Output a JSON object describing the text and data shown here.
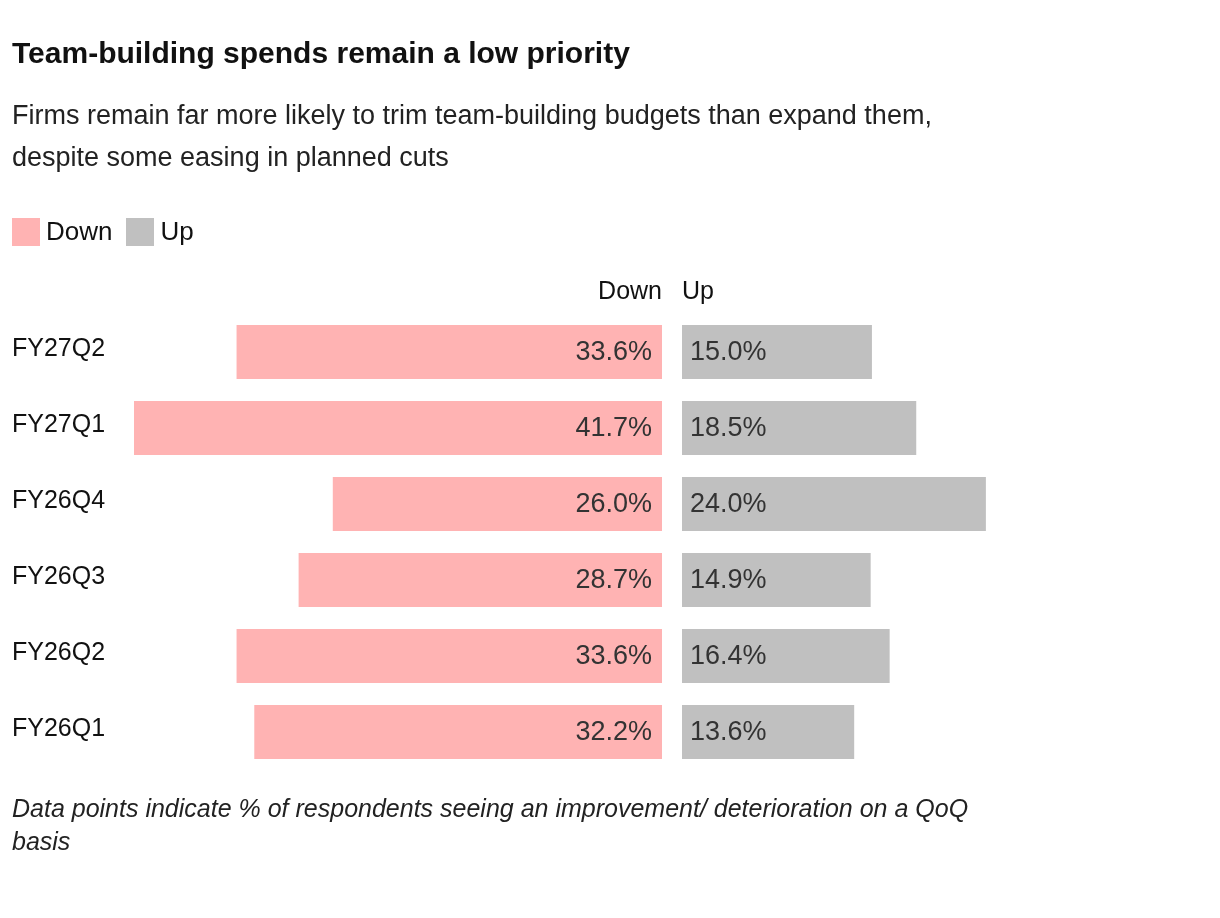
{
  "chart_data": [
    {
      "type": "bar",
      "orientation": "horizontal",
      "title": "Team-building spends remain a low priority",
      "subtitle": "Firms remain far more likely to trim team-building budgets than expand them, despite some easing in planned cuts",
      "categories": [
        "FY27Q2",
        "FY27Q1",
        "FY26Q4",
        "FY26Q3",
        "FY26Q2",
        "FY26Q1"
      ],
      "series": [
        {
          "name": "Down",
          "color": "#ffb3b3",
          "values": [
            33.6,
            41.7,
            26.0,
            28.7,
            33.6,
            32.2
          ],
          "value_labels": [
            "33.6%",
            "41.7%",
            "26.0%",
            "28.7%",
            "33.6%",
            "32.2%"
          ]
        }
      ],
      "legend": "top left",
      "annotations": [
        "Data points indicate % of respondents seeing an improvement/ deterioration on a QoQ basis"
      ]
    },
    {
      "type": "bar",
      "orientation": "horizontal",
      "tick_labels": false,
      "categories": [
        null,
        null,
        null,
        null,
        null,
        null
      ],
      "series": [
        {
          "name": "Up",
          "color": "#c0c0c0",
          "values": [
            15.0,
            18.5,
            24.0,
            14.9,
            16.4,
            13.6
          ],
          "value_labels": [
            "15.0%",
            "18.5%",
            "24.0%",
            "14.9%",
            "16.4%",
            "13.6%"
          ]
        }
      ],
      "legend": "top left"
    }
  ]
}
